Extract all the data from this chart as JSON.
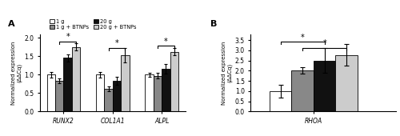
{
  "panel_A": {
    "groups": [
      "RUNX2",
      "COL1A1",
      "ALPL"
    ],
    "bar_labels": [
      "1 g",
      "1 g + BTNPs",
      "20 g",
      "20 g + BTNPs"
    ],
    "bar_colors": [
      "white",
      "#888888",
      "#111111",
      "#cccccc"
    ],
    "bar_edgecolor": "black",
    "values": [
      [
        1.0,
        0.83,
        1.45,
        1.75
      ],
      [
        1.0,
        0.62,
        0.83,
        1.52
      ],
      [
        1.0,
        0.97,
        1.15,
        1.62
      ]
    ],
    "errors": [
      [
        0.08,
        0.07,
        0.09,
        0.1
      ],
      [
        0.08,
        0.07,
        0.1,
        0.2
      ],
      [
        0.05,
        0.08,
        0.13,
        0.1
      ]
    ],
    "ylabel": "Normalized expression\n(ΔΔCq)",
    "ylim": [
      0.0,
      2.1
    ],
    "yticks": [
      0.0,
      0.5,
      1.0,
      1.5,
      2.0
    ],
    "panel_label": "A"
  },
  "panel_B": {
    "groups": [
      "RHOA"
    ],
    "bar_labels": [
      "1 g",
      "1 g + BTNPs",
      "20 g",
      "20 g + BTNPs"
    ],
    "bar_colors": [
      "white",
      "#888888",
      "#111111",
      "#cccccc"
    ],
    "bar_edgecolor": "black",
    "values": [
      [
        1.0,
        2.02,
        2.5,
        2.78
      ]
    ],
    "errors": [
      [
        0.32,
        0.15,
        0.6,
        0.52
      ]
    ],
    "ylabel": "Normalized expression\n(ΔΔCq)",
    "ylim": [
      0.0,
      3.8
    ],
    "yticks": [
      0.0,
      0.5,
      1.0,
      1.5,
      2.0,
      2.5,
      3.0,
      3.5
    ],
    "panel_label": "B"
  }
}
